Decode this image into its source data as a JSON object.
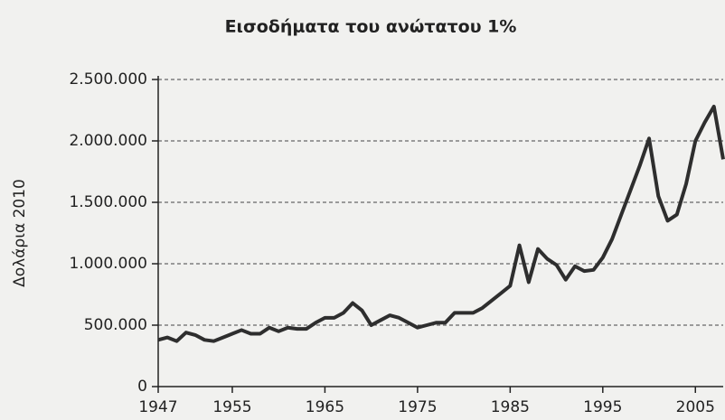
{
  "chart_data": {
    "type": "line",
    "title": "Εισοδήματα του ανώτατου 1%",
    "y_label": "Δολάρια 2010",
    "x": [
      1947,
      1948,
      1949,
      1950,
      1951,
      1952,
      1953,
      1954,
      1955,
      1956,
      1957,
      1958,
      1959,
      1960,
      1961,
      1962,
      1963,
      1964,
      1965,
      1966,
      1967,
      1968,
      1969,
      1970,
      1971,
      1972,
      1973,
      1974,
      1975,
      1976,
      1977,
      1978,
      1979,
      1980,
      1981,
      1982,
      1983,
      1984,
      1985,
      1986,
      1987,
      1988,
      1989,
      1990,
      1991,
      1992,
      1993,
      1994,
      1995,
      1996,
      1997,
      1998,
      1999,
      2000,
      2001,
      2002,
      2003,
      2004,
      2005,
      2006,
      2007,
      2008
    ],
    "series": [
      {
        "name": "Εισοδήματα του ανώτατου 1%",
        "color": "#2e2e2e",
        "values": [
          380000,
          400000,
          370000,
          440000,
          420000,
          380000,
          370000,
          400000,
          430000,
          460000,
          430000,
          430000,
          480000,
          450000,
          480000,
          470000,
          470000,
          520000,
          560000,
          560000,
          600000,
          680000,
          620000,
          500000,
          540000,
          580000,
          560000,
          520000,
          480000,
          500000,
          520000,
          520000,
          600000,
          600000,
          600000,
          640000,
          700000,
          760000,
          820000,
          1150000,
          850000,
          1120000,
          1040000,
          990000,
          870000,
          980000,
          940000,
          950000,
          1050000,
          1200000,
          1400000,
          1600000,
          1800000,
          2020000,
          1550000,
          1350000,
          1400000,
          1650000,
          2000000,
          2150000,
          2280000,
          1850000
        ]
      }
    ],
    "xlim": [
      1947,
      2008
    ],
    "xticks": [
      1947,
      1955,
      1965,
      1975,
      1985,
      1995,
      2005
    ],
    "ylim": [
      0,
      2500000
    ],
    "yticks": [
      0,
      {
        "value": 500000,
        "label": "500.000"
      },
      {
        "value": 1000000,
        "label": "1.000.000"
      },
      {
        "value": 1500000,
        "label": "1.500.000"
      },
      {
        "value": 2000000,
        "label": "2.000.000"
      },
      {
        "value": 2500000,
        "label": "2.500.000"
      }
    ],
    "grid": true
  }
}
